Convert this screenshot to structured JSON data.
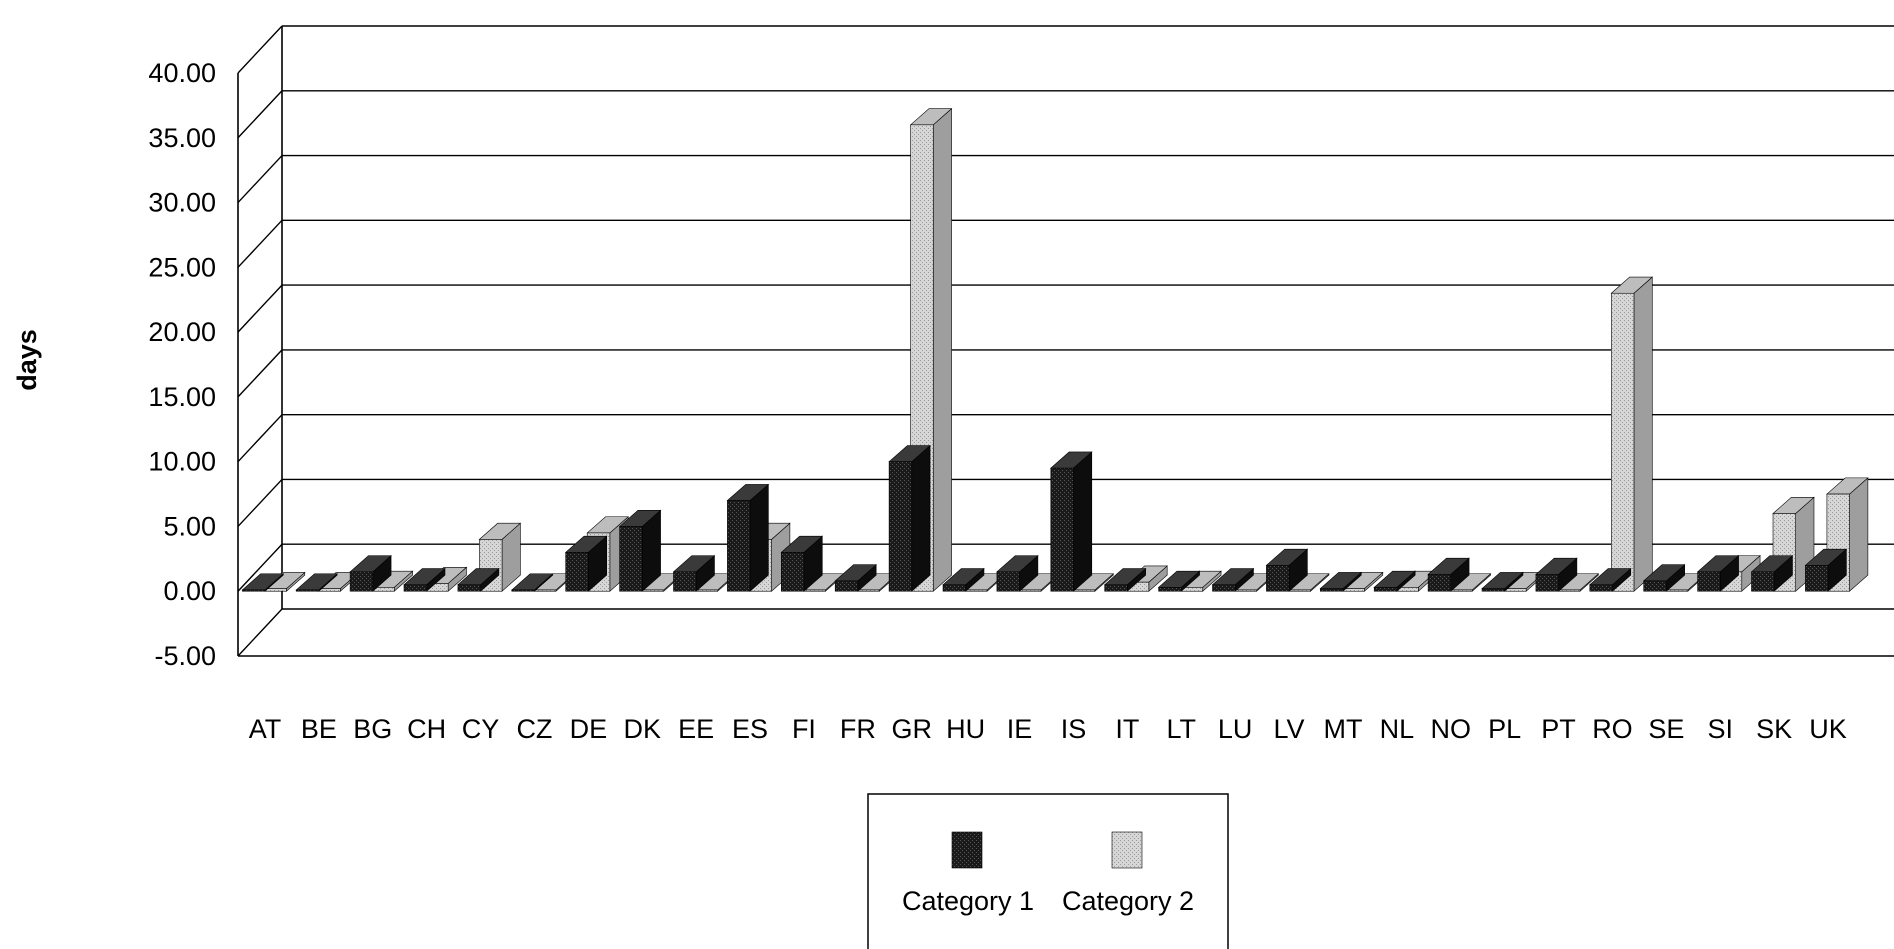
{
  "chart_data": {
    "type": "bar",
    "style": "3d-clustered-column",
    "categories": [
      "AT",
      "BE",
      "BG",
      "CH",
      "CY",
      "CZ",
      "DE",
      "DK",
      "EE",
      "ES",
      "FI",
      "FR",
      "GR",
      "HU",
      "IE",
      "IS",
      "IT",
      "LT",
      "LU",
      "LV",
      "MT",
      "NL",
      "NO",
      "PL",
      "PT",
      "RO",
      "SE",
      "SI",
      "SK",
      "UK"
    ],
    "series": [
      {
        "name": "Category 1",
        "values": [
          0.1,
          0.1,
          1.5,
          0.5,
          0.5,
          0.1,
          3.0,
          5.0,
          1.5,
          7.0,
          3.0,
          0.8,
          10.0,
          0.5,
          1.5,
          9.5,
          0.5,
          0.3,
          0.5,
          2.0,
          0.2,
          0.3,
          1.3,
          0.2,
          1.3,
          0.5,
          0.8,
          1.5,
          1.5,
          2.0
        ]
      },
      {
        "name": "Category 2",
        "values": [
          0.2,
          0.2,
          0.3,
          0.6,
          4.0,
          0.1,
          4.5,
          0.1,
          0.1,
          4.0,
          0.1,
          0.1,
          36.0,
          0.1,
          0.1,
          0.1,
          0.7,
          0.3,
          0.1,
          0.1,
          0.2,
          0.3,
          0.1,
          0.2,
          0.1,
          23.0,
          0.1,
          1.5,
          6.0,
          7.5
        ]
      }
    ],
    "title": "",
    "xlabel": "",
    "ylabel": "days",
    "ylim": [
      -5,
      40
    ],
    "yticks": [
      "-5.00",
      "0.00",
      "5.00",
      "10.00",
      "15.00",
      "20.00",
      "25.00",
      "30.00",
      "35.00",
      "40.00"
    ],
    "ytick_values": [
      -5,
      0,
      5,
      10,
      15,
      20,
      25,
      30,
      35,
      40
    ],
    "grid": true,
    "legend_position": "bottom-center",
    "colors": {
      "Category 1": "#1a1a1a",
      "Category 2": "#c8c8c8"
    }
  }
}
